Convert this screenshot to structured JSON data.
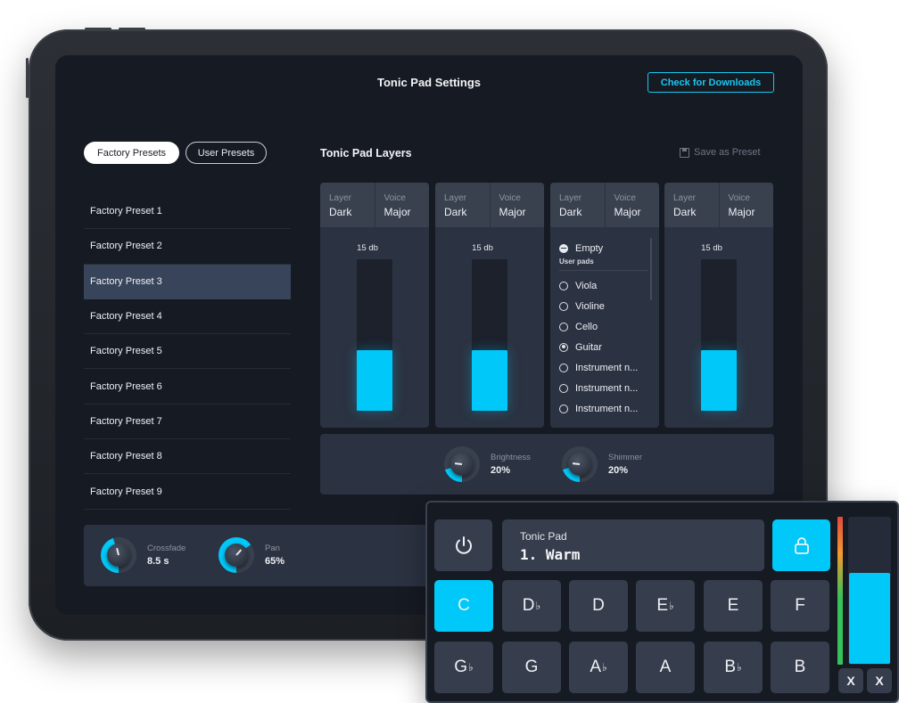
{
  "header": {
    "title": "Tonic Pad Settings",
    "downloads_label": "Check for Downloads"
  },
  "tabs": {
    "factory": "Factory Presets",
    "user": "User Presets"
  },
  "presets": [
    "Factory Preset 1",
    "Factory Preset 2",
    "Factory Preset 3",
    "Factory Preset 4",
    "Factory Preset 5",
    "Factory Preset 6",
    "Factory Preset 7",
    "Factory Preset 8",
    "Factory Preset 9"
  ],
  "selected_preset_index": 2,
  "layers": {
    "title": "Tonic Pad Layers",
    "save_label": "Save as Preset",
    "layer_label": "Layer",
    "voice_label": "Voice",
    "cards": [
      {
        "layer": "Dark",
        "voice": "Major",
        "db": "15 db",
        "level": 0.4
      },
      {
        "layer": "Dark",
        "voice": "Major",
        "db": "15 db",
        "level": 0.4
      },
      {
        "layer": "Dark",
        "voice": "Major"
      },
      {
        "layer": "Dark",
        "voice": "Major",
        "db": "15 db",
        "level": 0.4
      }
    ],
    "dropdown": {
      "empty_label": "Empty",
      "section_label": "User pads",
      "options": [
        "Viola",
        "Violine",
        "Cello",
        "Guitar",
        "Instrument n...",
        "Instrument n...",
        "Instrument n..."
      ],
      "checked": "Guitar"
    }
  },
  "knobs_top": [
    {
      "label": "Brightness",
      "value": "20%",
      "fraction": 0.2
    },
    {
      "label": "Shimmer",
      "value": "20%",
      "fraction": 0.2
    }
  ],
  "knobs_bottom": [
    {
      "label": "Crossfade",
      "value": "8.5 s",
      "fraction": 0.45
    },
    {
      "label": "Pan",
      "value": "65%",
      "fraction": 0.65
    }
  ],
  "widget": {
    "display_label": "Tonic Pad",
    "display_value": "1. Warm",
    "keys_row1": [
      {
        "base": "C",
        "acc": "",
        "active": true
      },
      {
        "base": "D",
        "acc": "♭",
        "active": false
      },
      {
        "base": "D",
        "acc": "",
        "active": false
      },
      {
        "base": "E",
        "acc": "♭",
        "active": false
      },
      {
        "base": "E",
        "acc": "",
        "active": false
      },
      {
        "base": "F",
        "acc": "",
        "active": false
      }
    ],
    "keys_row2": [
      {
        "base": "G",
        "acc": "♭",
        "active": false
      },
      {
        "base": "G",
        "acc": "",
        "active": false
      },
      {
        "base": "A",
        "acc": "♭",
        "active": false
      },
      {
        "base": "A",
        "acc": "",
        "active": false
      },
      {
        "base": "B",
        "acc": "♭",
        "active": false
      },
      {
        "base": "B",
        "acc": "",
        "active": false
      }
    ],
    "x_label": "X",
    "volume": 0.62
  },
  "colors": {
    "accent": "#00c8f8",
    "panel": "#2b3241",
    "background": "#161a23"
  }
}
